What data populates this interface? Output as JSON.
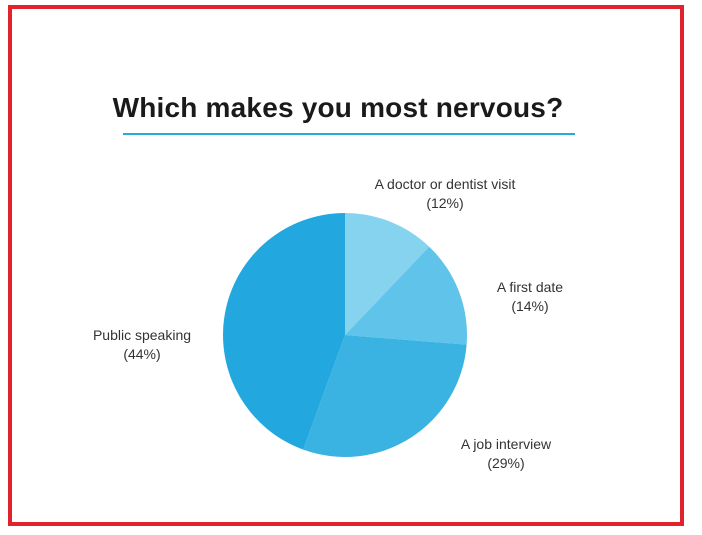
{
  "chart_data": {
    "type": "pie",
    "title": "Which makes you most nervous?",
    "slices": [
      {
        "label": "A doctor or dentist visit",
        "value": 12,
        "value_label": "(12%)",
        "color": "#86d3ef"
      },
      {
        "label": "A first date",
        "value": 14,
        "value_label": "(14%)",
        "color": "#5fc3ea"
      },
      {
        "label": "A job interview",
        "value": 29,
        "value_label": "(29%)",
        "color": "#3ab3e3"
      },
      {
        "label": "Public speaking",
        "value": 44,
        "value_label": "(44%)",
        "color": "#22a8df"
      }
    ],
    "start_angle_deg": 0,
    "direction": "clockwise"
  },
  "colors": {
    "frame": "#e0232c",
    "title_underline": "#29a9df"
  }
}
